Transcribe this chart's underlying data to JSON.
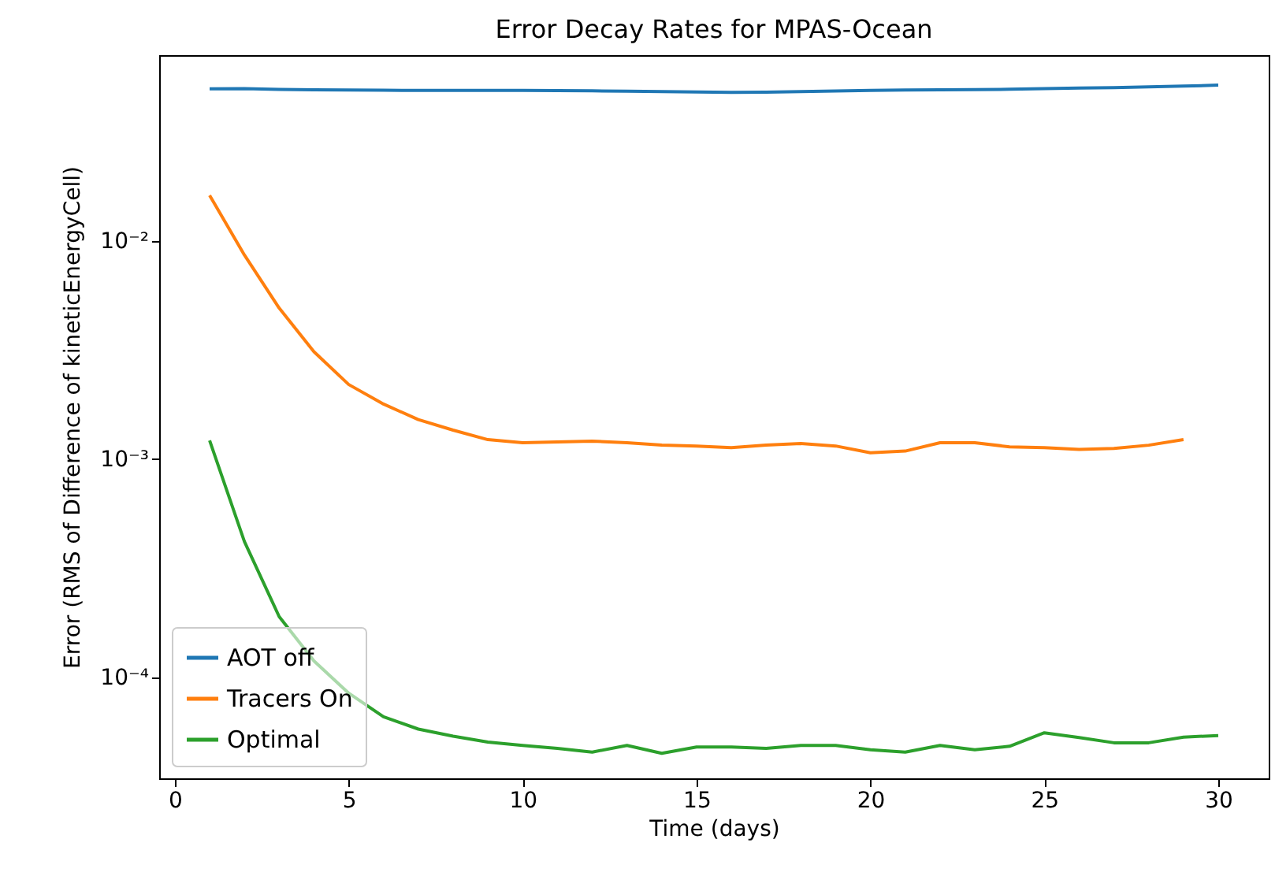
{
  "chart_data": {
    "type": "line",
    "title": "Error Decay Rates for MPAS-Ocean",
    "xlabel": "Time (days)",
    "ylabel": "Error (RMS of Difference of kineticEnergyCell)",
    "x": [
      1,
      2,
      3,
      4,
      5,
      6,
      7,
      8,
      9,
      10,
      11,
      12,
      13,
      14,
      15,
      16,
      17,
      18,
      19,
      20,
      21,
      22,
      23,
      24,
      25,
      26,
      27,
      28,
      29,
      30
    ],
    "series": [
      {
        "name": "AOT off",
        "color": "#1f77b4",
        "values": [
          0.0498,
          0.0499,
          0.0495,
          0.0493,
          0.0492,
          0.0491,
          0.049,
          0.049,
          0.049,
          0.049,
          0.0489,
          0.0488,
          0.0486,
          0.0484,
          0.0482,
          0.048,
          0.0481,
          0.0484,
          0.0487,
          0.049,
          0.0492,
          0.0493,
          0.0494,
          0.0496,
          0.0499,
          0.0502,
          0.0505,
          0.0509,
          0.0513,
          0.0518
        ]
      },
      {
        "name": "Tracers On",
        "color": "#ff7f0e",
        "x": [
          1,
          2,
          3,
          4,
          5,
          6,
          7,
          8,
          9,
          10,
          11,
          12,
          13,
          14,
          15,
          16,
          17,
          18,
          19,
          20,
          21,
          22,
          23,
          24,
          25,
          26,
          27,
          28,
          29
        ],
        "values": [
          0.0162,
          0.00863,
          0.00493,
          0.00311,
          0.0022,
          0.00179,
          0.00152,
          0.00136,
          0.00123,
          0.00119,
          0.0012,
          0.00121,
          0.00119,
          0.00116,
          0.00115,
          0.00113,
          0.00116,
          0.00118,
          0.00115,
          0.00107,
          0.00109,
          0.00119,
          0.00119,
          0.00114,
          0.00113,
          0.00111,
          0.00112,
          0.00116,
          0.00123
        ]
      },
      {
        "name": "Optimal",
        "color": "#2ca02c",
        "values": [
          0.00122,
          0.00042,
          0.00019,
          0.000119,
          8.47e-05,
          6.6e-05,
          5.8e-05,
          5.38e-05,
          5.06e-05,
          4.88e-05,
          4.73e-05,
          4.55e-05,
          4.88e-05,
          4.49e-05,
          4.8e-05,
          4.8e-05,
          4.73e-05,
          4.88e-05,
          4.88e-05,
          4.66e-05,
          4.55e-05,
          4.88e-05,
          4.66e-05,
          4.84e-05,
          5.58e-05,
          5.3e-05,
          5.02e-05,
          5.02e-05,
          5.33e-05,
          5.42e-05
        ]
      }
    ],
    "log": "y",
    "xlim": [
      -0.45,
      31.45
    ],
    "xticks": [
      0,
      5,
      10,
      15,
      20,
      25,
      30
    ],
    "ylim": [
      3.45e-05,
      0.0711
    ],
    "yticks": [
      {
        "value": 0.0001,
        "label": "10⁻⁴"
      },
      {
        "value": 0.001,
        "label": "10⁻³"
      },
      {
        "value": 0.01,
        "label": "10⁻²"
      }
    ],
    "grid": false,
    "legend": "bottom left"
  }
}
